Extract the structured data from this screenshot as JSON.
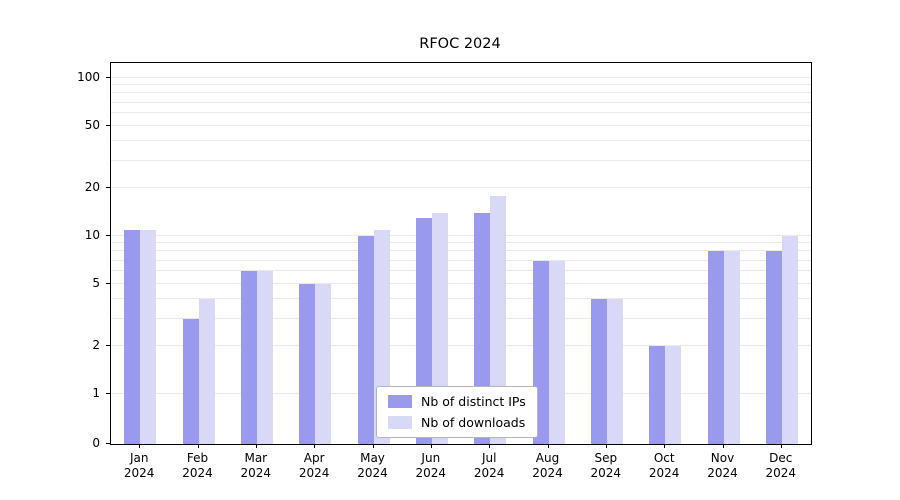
{
  "chart_data": {
    "type": "bar",
    "title": "RFOC 2024",
    "categories": [
      "Jan",
      "Feb",
      "Mar",
      "Apr",
      "May",
      "Jun",
      "Jul",
      "Aug",
      "Sep",
      "Oct",
      "Nov",
      "Dec"
    ],
    "year_label": "2024",
    "series": [
      {
        "name": "Nb of distinct IPs",
        "color": "#9999ee",
        "values": [
          11,
          3,
          6,
          5,
          10,
          13,
          14,
          7,
          4,
          2,
          8,
          8
        ]
      },
      {
        "name": "Nb of downloads",
        "color": "#d9d9f7",
        "values": [
          11,
          4,
          6,
          5,
          11,
          14,
          18,
          7,
          4,
          2,
          8,
          10
        ]
      }
    ],
    "yscale": "symlog",
    "yticks": [
      0,
      1,
      2,
      5,
      10,
      20,
      50,
      100
    ],
    "minor_gridlines": [
      1,
      2,
      3,
      4,
      5,
      6,
      7,
      8,
      9,
      10,
      20,
      30,
      40,
      50,
      60,
      70,
      80,
      90,
      100
    ],
    "ylim": [
      0,
      124
    ],
    "xlabel": "",
    "ylabel": "",
    "grid": "horizontal",
    "legend_position": "bottom-center"
  }
}
